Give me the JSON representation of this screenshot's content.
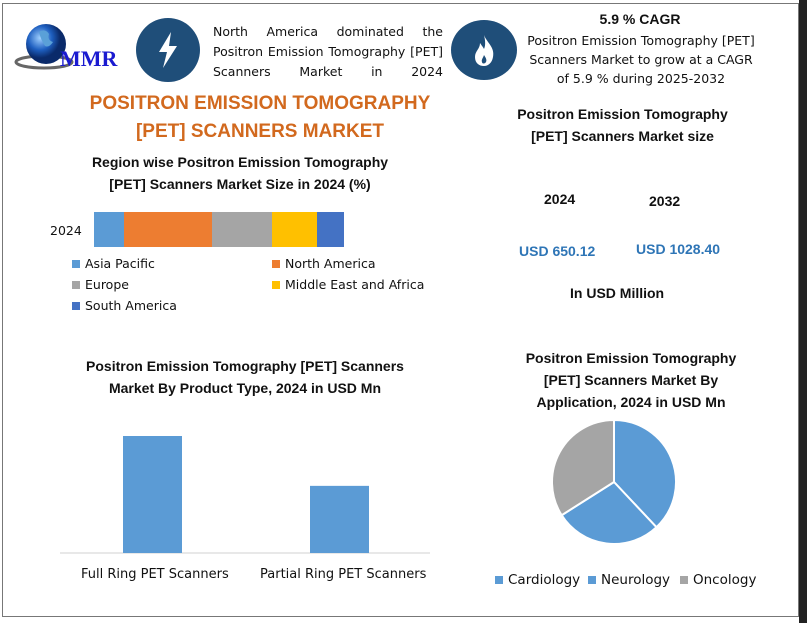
{
  "header": {
    "logo_text": "MMR",
    "icons": [
      "lightning-icon",
      "flame-icon"
    ],
    "region_note": "North America dominated the Positron Emission Tomography [PET] Scanners Market in 2024",
    "cagr_title": "5.9 % CAGR",
    "cagr_text": "Positron Emission Tomography [PET] Scanners Market to grow at a CAGR of 5.9 % during 2025-2032"
  },
  "title": "POSITRON EMISSION TOMOGRAPHY [PET] SCANNERS MARKET",
  "market_size": {
    "title": "Positron Emission Tomography [PET] Scanners Market size",
    "years": [
      "2024",
      "2032"
    ],
    "values": [
      "USD 650.12",
      "USD 1028.40"
    ],
    "unit": "In USD Million"
  },
  "colors": {
    "accent": "#d2691e",
    "icon_circle": "#1f4e79",
    "value_blue": "#2e75b6"
  },
  "chart_data": [
    {
      "type": "bar",
      "stacked": true,
      "orientation": "horizontal",
      "title": "Region wise Positron Emission Tomography [PET] Scanners Market Size in 2024 (%)",
      "categories": [
        "2024"
      ],
      "series": [
        {
          "name": "Asia Pacific",
          "values": [
            12
          ],
          "color": "#5b9bd5"
        },
        {
          "name": "North America",
          "values": [
            35
          ],
          "color": "#ed7d31"
        },
        {
          "name": "Europe",
          "values": [
            24
          ],
          "color": "#a5a5a5"
        },
        {
          "name": "Middle East and Africa",
          "values": [
            18
          ],
          "color": "#ffc000"
        },
        {
          "name": "South America",
          "values": [
            11
          ],
          "color": "#4472c4"
        }
      ],
      "legend": "bottom"
    },
    {
      "type": "bar",
      "title": "Positron Emission Tomography [PET] Scanners Market By Product Type, 2024 in USD Mn",
      "categories": [
        "Full Ring PET Scanners",
        "Partial Ring PET Scanners"
      ],
      "values": [
        413,
        237
      ],
      "color": "#5b9bd5"
    },
    {
      "type": "pie",
      "title": "Positron Emission Tomography [PET] Scanners Market By Application, 2024 in USD Mn",
      "labels": [
        "Cardiology",
        "Neurology",
        "Oncology"
      ],
      "values": [
        38,
        28,
        34
      ],
      "colors": [
        "#5b9bd5",
        "#5b9bd5",
        "#a5a5a5"
      ],
      "legend": "bottom"
    }
  ]
}
